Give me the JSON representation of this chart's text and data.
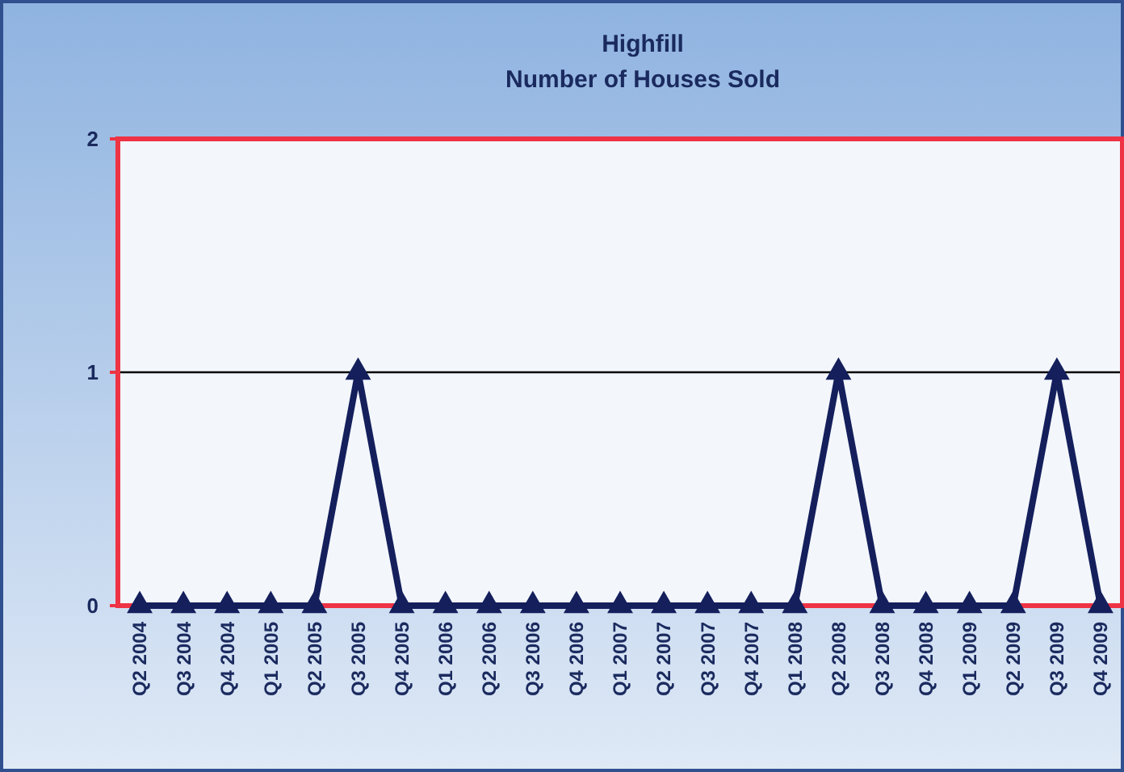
{
  "chart_data": {
    "type": "line",
    "title": "Highfill",
    "subtitle": "Number of Houses Sold",
    "categories": [
      "Q2 2004",
      "Q3 2004",
      "Q4 2004",
      "Q1 2005",
      "Q2 2005",
      "Q3 2005",
      "Q4 2005",
      "Q1 2006",
      "Q2 2006",
      "Q3 2006",
      "Q4 2006",
      "Q1 2007",
      "Q2 2007",
      "Q3 2007",
      "Q4 2007",
      "Q1 2008",
      "Q2 2008",
      "Q3 2008",
      "Q4 2008",
      "Q1 2009",
      "Q2 2009",
      "Q3 2009",
      "Q4 2009"
    ],
    "series": [
      {
        "color": "#141f5c",
        "values": [
          0,
          0,
          0,
          0,
          0,
          1,
          0,
          0,
          0,
          0,
          0,
          0,
          0,
          0,
          0,
          0,
          1,
          0,
          0,
          0,
          0,
          1,
          0
        ]
      }
    ],
    "ylim": [
      0,
      2
    ],
    "yticks": [
      0,
      1,
      2
    ],
    "grid": "y",
    "marker": "triangle",
    "line_style": "solid"
  }
}
